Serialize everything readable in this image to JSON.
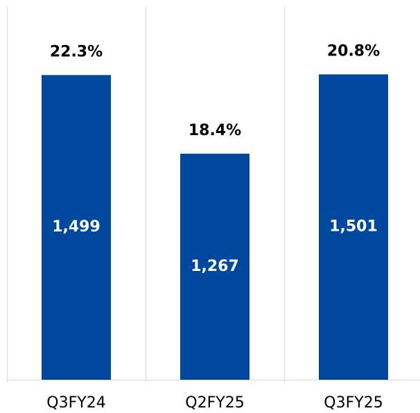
{
  "chart_data": {
    "type": "bar",
    "categories": [
      "Q3FY24",
      "Q2FY25",
      "Q3FY25"
    ],
    "values": [
      1499,
      1267,
      1501
    ],
    "value_labels": [
      "1,499",
      "1,267",
      "1,501"
    ],
    "top_values": [
      22.3,
      18.4,
      20.8
    ],
    "top_value_labels": [
      "22.3%",
      "18.4%",
      "20.8%"
    ],
    "color": "#00479e",
    "ylim": [
      600,
      1700
    ]
  }
}
